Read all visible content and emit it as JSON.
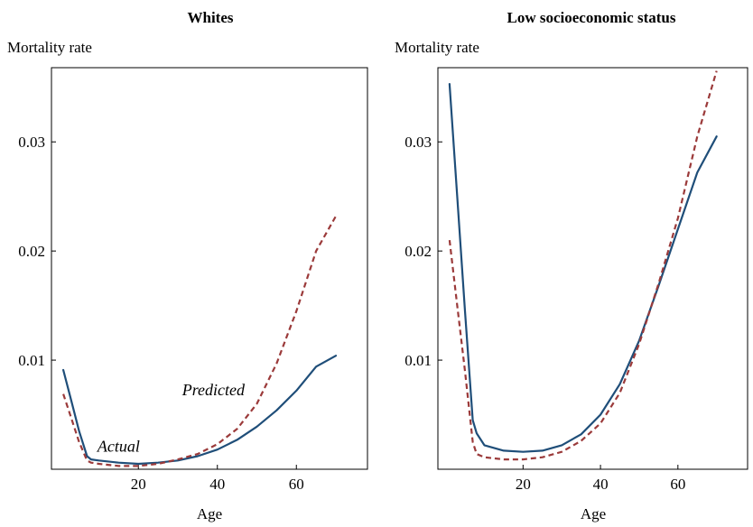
{
  "chart_data": [
    {
      "type": "line",
      "title": "Whites",
      "xlabel": "Age",
      "ylabel": "Mortality rate",
      "xlim": [
        -2,
        78
      ],
      "ylim": [
        0.0,
        0.0368
      ],
      "xticks": [
        20,
        40,
        60
      ],
      "yticks": [
        0.01,
        0.02,
        0.03
      ],
      "xtick_labels": [
        "20",
        "40",
        "60"
      ],
      "ytick_labels": [
        "0.01",
        "0.02",
        "0.03"
      ],
      "grid": false,
      "colors": {
        "Actual": "#1f4e79",
        "Predicted": "#9b3a3a"
      },
      "annotations": [
        {
          "text": "Actual",
          "series": "Actual",
          "x": 15,
          "y": 0.0016
        },
        {
          "text": "Predicted",
          "series": "Predicted",
          "x": 39,
          "y": 0.0068
        }
      ],
      "series": [
        {
          "name": "Actual",
          "style": "solid",
          "x": [
            1,
            3,
            5,
            7,
            8,
            10,
            15,
            20,
            25,
            30,
            35,
            40,
            45,
            50,
            55,
            60,
            65,
            70
          ],
          "y": [
            0.0091,
            0.0063,
            0.0035,
            0.0012,
            0.0009,
            0.0008,
            0.0006,
            0.0005,
            0.0006,
            0.0008,
            0.0012,
            0.0018,
            0.0027,
            0.0039,
            0.0054,
            0.0072,
            0.0094,
            0.0104
          ]
        },
        {
          "name": "Predicted",
          "style": "dashed",
          "x": [
            1,
            3,
            5,
            7,
            8,
            10,
            15,
            20,
            25,
            30,
            35,
            40,
            45,
            50,
            55,
            60,
            65,
            70
          ],
          "y": [
            0.0069,
            0.0047,
            0.0025,
            0.0008,
            0.0006,
            0.0005,
            0.0003,
            0.0003,
            0.0005,
            0.0009,
            0.0014,
            0.0023,
            0.0037,
            0.006,
            0.0097,
            0.0145,
            0.02,
            0.0232
          ]
        }
      ]
    },
    {
      "type": "line",
      "title": "Low socioeconomic status",
      "xlabel": "Age",
      "ylabel": "Mortality rate",
      "xlim": [
        -2,
        78
      ],
      "ylim": [
        0.0,
        0.0368
      ],
      "xticks": [
        20,
        40,
        60
      ],
      "yticks": [
        0.01,
        0.02,
        0.03
      ],
      "xtick_labels": [
        "20",
        "40",
        "60"
      ],
      "ytick_labels": [
        "0.01",
        "0.02",
        "0.03"
      ],
      "grid": false,
      "colors": {
        "Actual": "#1f4e79",
        "Predicted": "#9b3a3a"
      },
      "series": [
        {
          "name": "Actual",
          "style": "solid",
          "x": [
            1,
            3,
            5,
            7,
            8,
            10,
            15,
            20,
            25,
            30,
            35,
            40,
            45,
            50,
            55,
            60,
            65,
            70
          ],
          "y": [
            0.0353,
            0.025,
            0.0145,
            0.0045,
            0.0033,
            0.0022,
            0.0017,
            0.0016,
            0.0017,
            0.0022,
            0.0032,
            0.005,
            0.0078,
            0.0118,
            0.0168,
            0.022,
            0.0272,
            0.0305
          ]
        },
        {
          "name": "Predicted",
          "style": "dashed",
          "x": [
            1,
            3,
            5,
            7,
            8,
            10,
            15,
            20,
            25,
            30,
            35,
            40,
            45,
            50,
            55,
            60,
            65,
            70
          ],
          "y": [
            0.021,
            0.015,
            0.009,
            0.0025,
            0.0014,
            0.0011,
            0.0009,
            0.0009,
            0.0011,
            0.0016,
            0.0026,
            0.0042,
            0.007,
            0.0115,
            0.017,
            0.023,
            0.0305,
            0.0365
          ]
        }
      ]
    }
  ]
}
